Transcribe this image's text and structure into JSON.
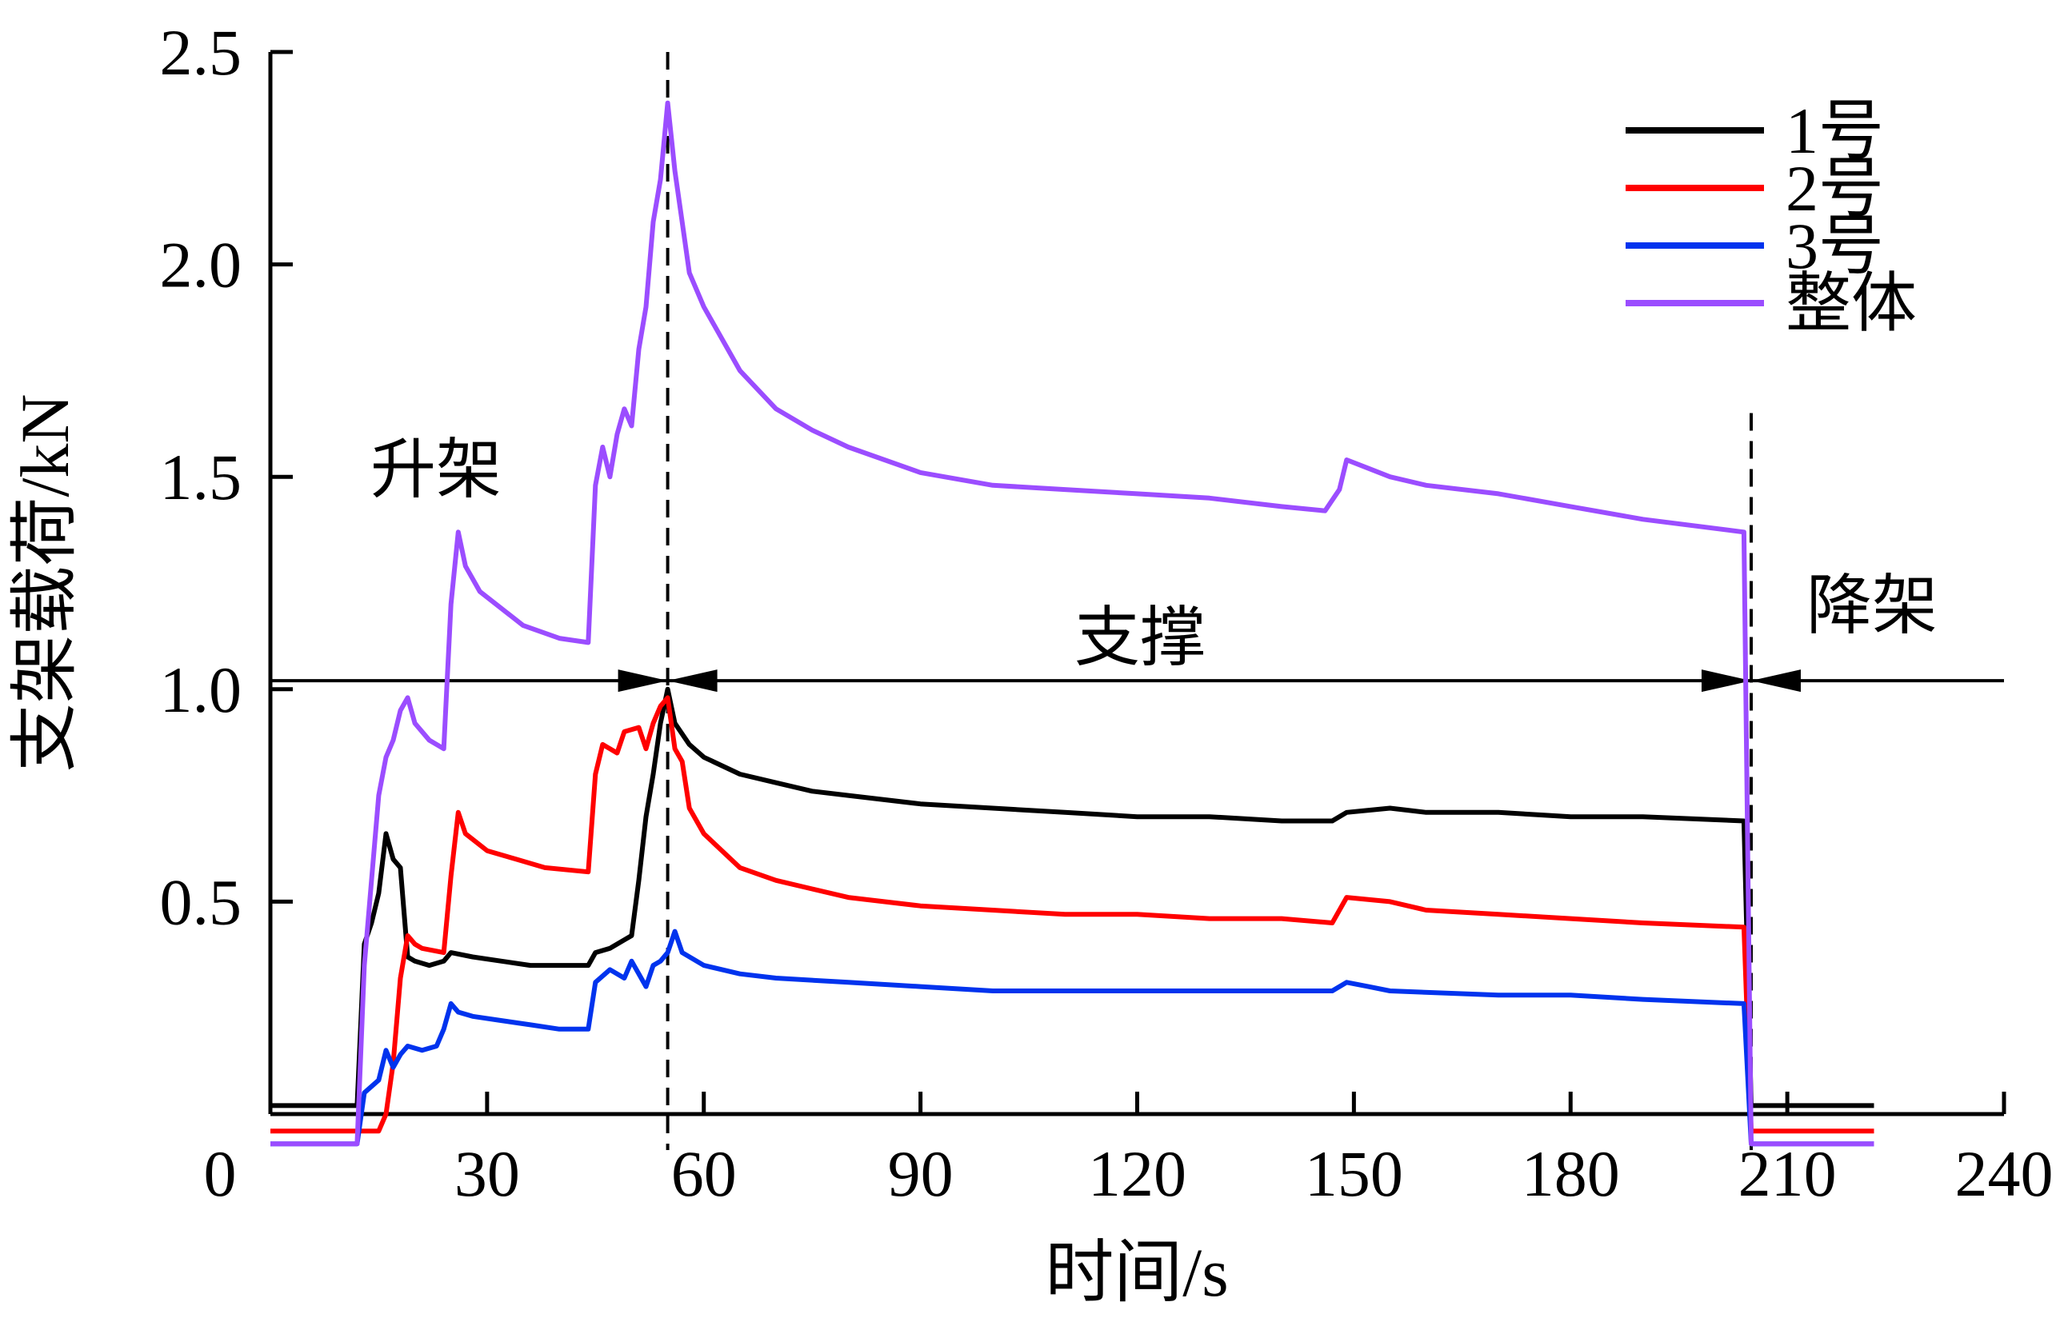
{
  "chart_data": {
    "type": "line",
    "title": "",
    "xlabel": "时间/s",
    "ylabel": "支架载荷/kN",
    "xlim": [
      0,
      240
    ],
    "ylim": [
      0,
      2.5
    ],
    "xticks": [
      0,
      30,
      60,
      90,
      120,
      150,
      180,
      210,
      240
    ],
    "xtick_labels": [
      "0",
      "30",
      "60",
      "90",
      "120",
      "150",
      "180",
      "210",
      "240"
    ],
    "yticks": [
      0.5,
      1.0,
      1.5,
      2.0,
      2.5
    ],
    "ytick_labels": [
      "0.5",
      "1.0",
      "1.5",
      "2.0",
      "2.5"
    ],
    "grid": false,
    "legend_position": "top-right",
    "series": [
      {
        "name": "1号",
        "color": "#000000",
        "points": [
          [
            0,
            0.02
          ],
          [
            12,
            0.02
          ],
          [
            13,
            0.4
          ],
          [
            14,
            0.45
          ],
          [
            15,
            0.52
          ],
          [
            16,
            0.66
          ],
          [
            17,
            0.6
          ],
          [
            18,
            0.58
          ],
          [
            19,
            0.37
          ],
          [
            20,
            0.36
          ],
          [
            22,
            0.35
          ],
          [
            24,
            0.36
          ],
          [
            25,
            0.38
          ],
          [
            28,
            0.37
          ],
          [
            32,
            0.36
          ],
          [
            36,
            0.35
          ],
          [
            40,
            0.35
          ],
          [
            44,
            0.35
          ],
          [
            45,
            0.38
          ],
          [
            47,
            0.39
          ],
          [
            49,
            0.41
          ],
          [
            50,
            0.42
          ],
          [
            51,
            0.55
          ],
          [
            52,
            0.7
          ],
          [
            53,
            0.8
          ],
          [
            54,
            0.92
          ],
          [
            55,
            1.0
          ],
          [
            56,
            0.92
          ],
          [
            58,
            0.87
          ],
          [
            60,
            0.84
          ],
          [
            65,
            0.8
          ],
          [
            70,
            0.78
          ],
          [
            75,
            0.76
          ],
          [
            80,
            0.75
          ],
          [
            90,
            0.73
          ],
          [
            100,
            0.72
          ],
          [
            110,
            0.71
          ],
          [
            120,
            0.7
          ],
          [
            130,
            0.7
          ],
          [
            140,
            0.69
          ],
          [
            147,
            0.69
          ],
          [
            149,
            0.71
          ],
          [
            155,
            0.72
          ],
          [
            160,
            0.71
          ],
          [
            170,
            0.71
          ],
          [
            180,
            0.7
          ],
          [
            190,
            0.7
          ],
          [
            204,
            0.69
          ],
          [
            205,
            0.02
          ],
          [
            222,
            0.02
          ]
        ]
      },
      {
        "name": "2号",
        "color": "#ff0000",
        "points": [
          [
            0,
            -0.04
          ],
          [
            15,
            -0.04
          ],
          [
            16,
            0.0
          ],
          [
            17,
            0.12
          ],
          [
            18,
            0.32
          ],
          [
            19,
            0.42
          ],
          [
            20,
            0.4
          ],
          [
            21,
            0.39
          ],
          [
            24,
            0.38
          ],
          [
            25,
            0.56
          ],
          [
            26,
            0.71
          ],
          [
            27,
            0.66
          ],
          [
            30,
            0.62
          ],
          [
            34,
            0.6
          ],
          [
            38,
            0.58
          ],
          [
            44,
            0.57
          ],
          [
            45,
            0.8
          ],
          [
            46,
            0.87
          ],
          [
            48,
            0.85
          ],
          [
            49,
            0.9
          ],
          [
            51,
            0.91
          ],
          [
            52,
            0.86
          ],
          [
            53,
            0.92
          ],
          [
            54,
            0.96
          ],
          [
            55,
            0.98
          ],
          [
            56,
            0.86
          ],
          [
            57,
            0.83
          ],
          [
            58,
            0.72
          ],
          [
            60,
            0.66
          ],
          [
            65,
            0.58
          ],
          [
            70,
            0.55
          ],
          [
            75,
            0.53
          ],
          [
            80,
            0.51
          ],
          [
            90,
            0.49
          ],
          [
            100,
            0.48
          ],
          [
            110,
            0.47
          ],
          [
            120,
            0.47
          ],
          [
            130,
            0.46
          ],
          [
            140,
            0.46
          ],
          [
            147,
            0.45
          ],
          [
            149,
            0.51
          ],
          [
            155,
            0.5
          ],
          [
            160,
            0.48
          ],
          [
            170,
            0.47
          ],
          [
            180,
            0.46
          ],
          [
            190,
            0.45
          ],
          [
            204,
            0.44
          ],
          [
            205,
            -0.04
          ],
          [
            222,
            -0.04
          ]
        ]
      },
      {
        "name": "3号",
        "color": "#0033ee",
        "points": [
          [
            0,
            -0.07
          ],
          [
            12,
            -0.07
          ],
          [
            13,
            0.05
          ],
          [
            15,
            0.08
          ],
          [
            16,
            0.15
          ],
          [
            17,
            0.11
          ],
          [
            18,
            0.14
          ],
          [
            19,
            0.16
          ],
          [
            21,
            0.15
          ],
          [
            23,
            0.16
          ],
          [
            24,
            0.2
          ],
          [
            25,
            0.26
          ],
          [
            26,
            0.24
          ],
          [
            28,
            0.23
          ],
          [
            32,
            0.22
          ],
          [
            36,
            0.21
          ],
          [
            40,
            0.2
          ],
          [
            44,
            0.2
          ],
          [
            45,
            0.31
          ],
          [
            47,
            0.34
          ],
          [
            49,
            0.32
          ],
          [
            50,
            0.36
          ],
          [
            51,
            0.33
          ],
          [
            52,
            0.3
          ],
          [
            53,
            0.35
          ],
          [
            54,
            0.36
          ],
          [
            55,
            0.38
          ],
          [
            56,
            0.43
          ],
          [
            57,
            0.38
          ],
          [
            60,
            0.35
          ],
          [
            65,
            0.33
          ],
          [
            70,
            0.32
          ],
          [
            80,
            0.31
          ],
          [
            90,
            0.3
          ],
          [
            100,
            0.29
          ],
          [
            110,
            0.29
          ],
          [
            120,
            0.29
          ],
          [
            130,
            0.29
          ],
          [
            140,
            0.29
          ],
          [
            147,
            0.29
          ],
          [
            149,
            0.31
          ],
          [
            152,
            0.3
          ],
          [
            155,
            0.29
          ],
          [
            170,
            0.28
          ],
          [
            180,
            0.28
          ],
          [
            190,
            0.27
          ],
          [
            204,
            0.26
          ],
          [
            205,
            -0.07
          ],
          [
            222,
            -0.07
          ]
        ]
      },
      {
        "name": "整体",
        "color": "#9b4dff",
        "points": [
          [
            0,
            -0.07
          ],
          [
            12,
            -0.07
          ],
          [
            13,
            0.35
          ],
          [
            14,
            0.55
          ],
          [
            15,
            0.75
          ],
          [
            16,
            0.84
          ],
          [
            17,
            0.88
          ],
          [
            18,
            0.95
          ],
          [
            19,
            0.98
          ],
          [
            20,
            0.92
          ],
          [
            22,
            0.88
          ],
          [
            24,
            0.86
          ],
          [
            25,
            1.2
          ],
          [
            26,
            1.37
          ],
          [
            27,
            1.29
          ],
          [
            29,
            1.23
          ],
          [
            32,
            1.19
          ],
          [
            35,
            1.15
          ],
          [
            40,
            1.12
          ],
          [
            44,
            1.11
          ],
          [
            45,
            1.48
          ],
          [
            46,
            1.57
          ],
          [
            47,
            1.5
          ],
          [
            48,
            1.6
          ],
          [
            49,
            1.66
          ],
          [
            50,
            1.62
          ],
          [
            51,
            1.8
          ],
          [
            52,
            1.9
          ],
          [
            53,
            2.1
          ],
          [
            54,
            2.2
          ],
          [
            55,
            2.38
          ],
          [
            56,
            2.22
          ],
          [
            57,
            2.1
          ],
          [
            58,
            1.98
          ],
          [
            60,
            1.9
          ],
          [
            65,
            1.75
          ],
          [
            70,
            1.66
          ],
          [
            75,
            1.61
          ],
          [
            80,
            1.57
          ],
          [
            90,
            1.51
          ],
          [
            100,
            1.48
          ],
          [
            110,
            1.47
          ],
          [
            120,
            1.46
          ],
          [
            130,
            1.45
          ],
          [
            140,
            1.43
          ],
          [
            146,
            1.42
          ],
          [
            148,
            1.47
          ],
          [
            149,
            1.54
          ],
          [
            152,
            1.52
          ],
          [
            155,
            1.5
          ],
          [
            160,
            1.48
          ],
          [
            170,
            1.46
          ],
          [
            180,
            1.43
          ],
          [
            190,
            1.4
          ],
          [
            204,
            1.37
          ],
          [
            205,
            -0.07
          ],
          [
            222,
            -0.07
          ]
        ]
      }
    ],
    "annotations": {
      "phase_rise": "升架",
      "phase_support": "支撑",
      "phase_lower": "降架",
      "phase_line_y": 1.02,
      "phase_boundaries": [
        55,
        205
      ]
    }
  }
}
